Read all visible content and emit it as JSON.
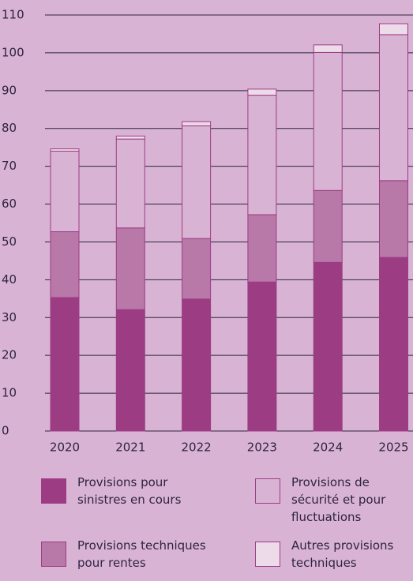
{
  "chart_data": {
    "type": "stacked_bar",
    "categories": [
      "2020",
      "2021",
      "2022",
      "2023",
      "2024",
      "2025"
    ],
    "series": [
      {
        "name": "Provisions pour sinistres en cours",
        "color": "#9c3d84",
        "values": [
          35.3,
          32.1,
          34.9,
          39.4,
          44.6,
          45.9
        ]
      },
      {
        "name": "Provisions techniques pour rentes",
        "color": "#b878a8",
        "values": [
          17.4,
          21.6,
          16.0,
          17.8,
          19.0,
          20.3
        ]
      },
      {
        "name": "Provisions de sécurité et pour fluctuations",
        "color": "#d9b3d4",
        "values": [
          21.3,
          23.5,
          29.8,
          31.6,
          36.5,
          38.6
        ]
      },
      {
        "name": "Autres provisions techniques",
        "color": "#eedbea",
        "values": [
          0.6,
          0.8,
          1.1,
          1.6,
          2.0,
          2.9
        ]
      }
    ],
    "ylim": [
      0,
      110
    ],
    "yticks": [
      0,
      10,
      20,
      30,
      40,
      50,
      60,
      70,
      80,
      90,
      100,
      110
    ],
    "grid": true
  }
}
